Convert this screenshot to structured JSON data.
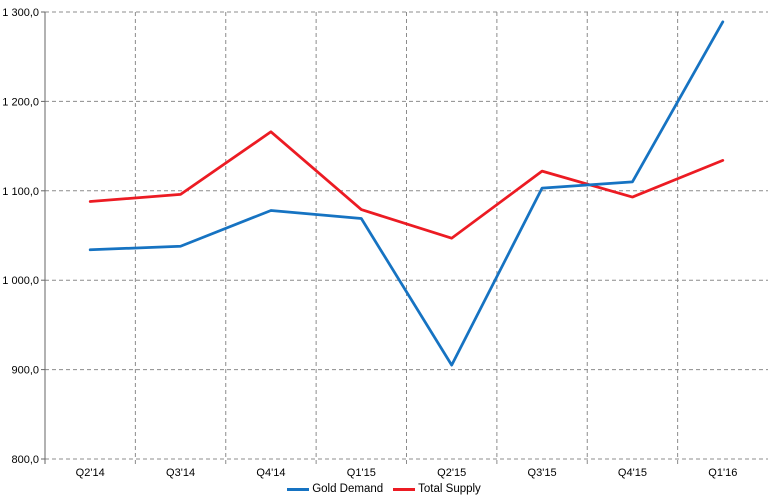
{
  "chart_data": {
    "type": "line",
    "title": "",
    "xlabel": "",
    "ylabel": "",
    "categories": [
      "Q2'14",
      "Q3'14",
      "Q4'14",
      "Q1'15",
      "Q2'15",
      "Q3'15",
      "Q4'15",
      "Q1'16"
    ],
    "series": [
      {
        "name": "Gold Demand",
        "color": "#1673C2",
        "values": [
          1034,
          1038,
          1078,
          1069,
          905,
          1103,
          1110,
          1289
        ]
      },
      {
        "name": "Total Supply",
        "color": "#EC1B23",
        "values": [
          1088,
          1096,
          1166,
          1079,
          1047,
          1122,
          1093,
          1134
        ]
      }
    ],
    "ylim": [
      800,
      1300
    ],
    "y_tick_step": 100,
    "y_tick_labels": [
      "800,0",
      "900,0",
      "1 000,0",
      "1 100,0",
      "1 200,0",
      "1 300,0"
    ],
    "grid": "dashed",
    "grid_color": "#8C8C8C",
    "axis_color": "#666666",
    "text_color": "#000000",
    "background_color": "#FFFFFF",
    "legend_position": "bottom"
  }
}
